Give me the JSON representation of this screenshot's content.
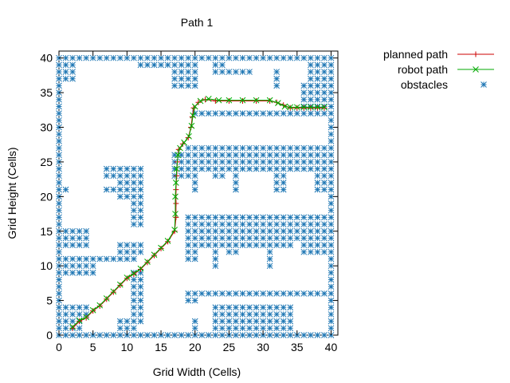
{
  "chart_data": {
    "type": "scatter",
    "title": "Path 1",
    "xlabel": "Grid Width (Cells)",
    "ylabel": "Grid Height (Cells)",
    "xlim": [
      0,
      41
    ],
    "ylim": [
      0,
      41
    ],
    "xticks": [
      "0",
      "5",
      "10",
      "15",
      "20",
      "25",
      "30",
      "35",
      "40"
    ],
    "yticks": [
      "0",
      "5",
      "10",
      "15",
      "20",
      "25",
      "30",
      "35",
      "40"
    ],
    "grid": false,
    "legend_position": "top-right, outside plot",
    "series": [
      {
        "name": "planned path",
        "style": "line+plus",
        "color": "#cc0000",
        "points": [
          [
            2,
            1
          ],
          [
            3,
            2
          ],
          [
            4,
            2.5
          ],
          [
            5,
            3.5
          ],
          [
            6,
            4.2
          ],
          [
            7,
            5.2
          ],
          [
            8,
            6.2
          ],
          [
            9,
            7.2
          ],
          [
            10,
            8.2
          ],
          [
            11,
            8.8
          ],
          [
            12,
            9.5
          ],
          [
            13,
            10.5
          ],
          [
            14,
            11.5
          ],
          [
            15,
            12.5
          ],
          [
            16,
            13.5
          ],
          [
            17,
            15
          ],
          [
            17.2,
            17
          ],
          [
            17.2,
            19
          ],
          [
            17.2,
            21
          ],
          [
            17.3,
            23
          ],
          [
            17.4,
            25
          ],
          [
            17.6,
            26.8
          ],
          [
            18.2,
            27.6
          ],
          [
            19,
            28.5
          ],
          [
            19.4,
            30
          ],
          [
            19.6,
            31.5
          ],
          [
            19.8,
            32.8
          ],
          [
            20.5,
            33.6
          ],
          [
            21.5,
            34
          ],
          [
            23,
            33.8
          ],
          [
            25,
            33.8
          ],
          [
            27,
            33.8
          ],
          [
            29,
            33.8
          ],
          [
            31,
            33.8
          ],
          [
            32,
            33.6
          ],
          [
            33,
            33.2
          ],
          [
            34,
            32.8
          ],
          [
            35,
            32.8
          ],
          [
            36,
            32.8
          ],
          [
            37,
            32.8
          ],
          [
            38,
            32.8
          ],
          [
            39,
            32.8
          ]
        ]
      },
      {
        "name": "robot path",
        "style": "line+cross",
        "color": "#00aa00",
        "points": [
          [
            2,
            1.2
          ],
          [
            3,
            2.1
          ],
          [
            4,
            2.6
          ],
          [
            5,
            3.6
          ],
          [
            6,
            4.3
          ],
          [
            7,
            5.3
          ],
          [
            8,
            6.3
          ],
          [
            9,
            7.3
          ],
          [
            10,
            8.3
          ],
          [
            11,
            8.9
          ],
          [
            12,
            9.6
          ],
          [
            13,
            10.6
          ],
          [
            14,
            11.6
          ],
          [
            15,
            12.6
          ],
          [
            16,
            13.6
          ],
          [
            17,
            15.2
          ],
          [
            17.1,
            17.5
          ],
          [
            17.1,
            20
          ],
          [
            17.2,
            22
          ],
          [
            17.3,
            24
          ],
          [
            17.5,
            26
          ],
          [
            17.8,
            27
          ],
          [
            18.4,
            27.8
          ],
          [
            19.1,
            28.7
          ],
          [
            19.5,
            30.2
          ],
          [
            19.7,
            31.7
          ],
          [
            20,
            33
          ],
          [
            20.8,
            33.8
          ],
          [
            22,
            34.1
          ],
          [
            23.5,
            33.9
          ],
          [
            25,
            33.9
          ],
          [
            27,
            33.9
          ],
          [
            29,
            33.9
          ],
          [
            31,
            33.9
          ],
          [
            32.2,
            33.5
          ],
          [
            33.2,
            33
          ],
          [
            34,
            32.9
          ],
          [
            35,
            32.9
          ],
          [
            36,
            32.9
          ],
          [
            37,
            32.9
          ],
          [
            38,
            32.9
          ],
          [
            39,
            32.9
          ]
        ]
      },
      {
        "name": "obstacles",
        "style": "asterisk",
        "color": "#1f77b4",
        "rects": [
          [
            0,
            0,
            40,
            0
          ],
          [
            0,
            40,
            40,
            40
          ],
          [
            0,
            0,
            0,
            40
          ],
          [
            40,
            0,
            40,
            40
          ],
          [
            1,
            37,
            2,
            39
          ],
          [
            12,
            39,
            16,
            39
          ],
          [
            17,
            36,
            20,
            39
          ],
          [
            23,
            38,
            24,
            39
          ],
          [
            25,
            38,
            28,
            38
          ],
          [
            32,
            36,
            32,
            38
          ],
          [
            37,
            37,
            39,
            39
          ],
          [
            36,
            33,
            39,
            36
          ],
          [
            20,
            32,
            39,
            32
          ],
          [
            1,
            21,
            1,
            21
          ],
          [
            7,
            21,
            11,
            21
          ],
          [
            7,
            24,
            12,
            24
          ],
          [
            7,
            23,
            11,
            23
          ],
          [
            9,
            22,
            11,
            22
          ],
          [
            9,
            20,
            11,
            20
          ],
          [
            11,
            16,
            12,
            23
          ],
          [
            1,
            13,
            4,
            15
          ],
          [
            1,
            9,
            5,
            11
          ],
          [
            5,
            11,
            11,
            11
          ],
          [
            9,
            12,
            12,
            13
          ],
          [
            1,
            3,
            4,
            4
          ],
          [
            1,
            1,
            3,
            2
          ],
          [
            9,
            1,
            11,
            2
          ],
          [
            11,
            2,
            12,
            9
          ],
          [
            17,
            23,
            19,
            26
          ],
          [
            19,
            24,
            40,
            27
          ],
          [
            20,
            21,
            20,
            23
          ],
          [
            23,
            23,
            24,
            23
          ],
          [
            26,
            21,
            26,
            23
          ],
          [
            32,
            21,
            33,
            23
          ],
          [
            38,
            21,
            40,
            23
          ],
          [
            19,
            14,
            40,
            17
          ],
          [
            19,
            11,
            20,
            13
          ],
          [
            21,
            13,
            30,
            13
          ],
          [
            23,
            10,
            23,
            12
          ],
          [
            25,
            12,
            26,
            12
          ],
          [
            29,
            13,
            34,
            13
          ],
          [
            31,
            10,
            31,
            12
          ],
          [
            36,
            12,
            40,
            13
          ],
          [
            19,
            5,
            20,
            6
          ],
          [
            20,
            6,
            40,
            6
          ],
          [
            23,
            1,
            34,
            4
          ],
          [
            20,
            1,
            20,
            2
          ]
        ]
      }
    ]
  }
}
